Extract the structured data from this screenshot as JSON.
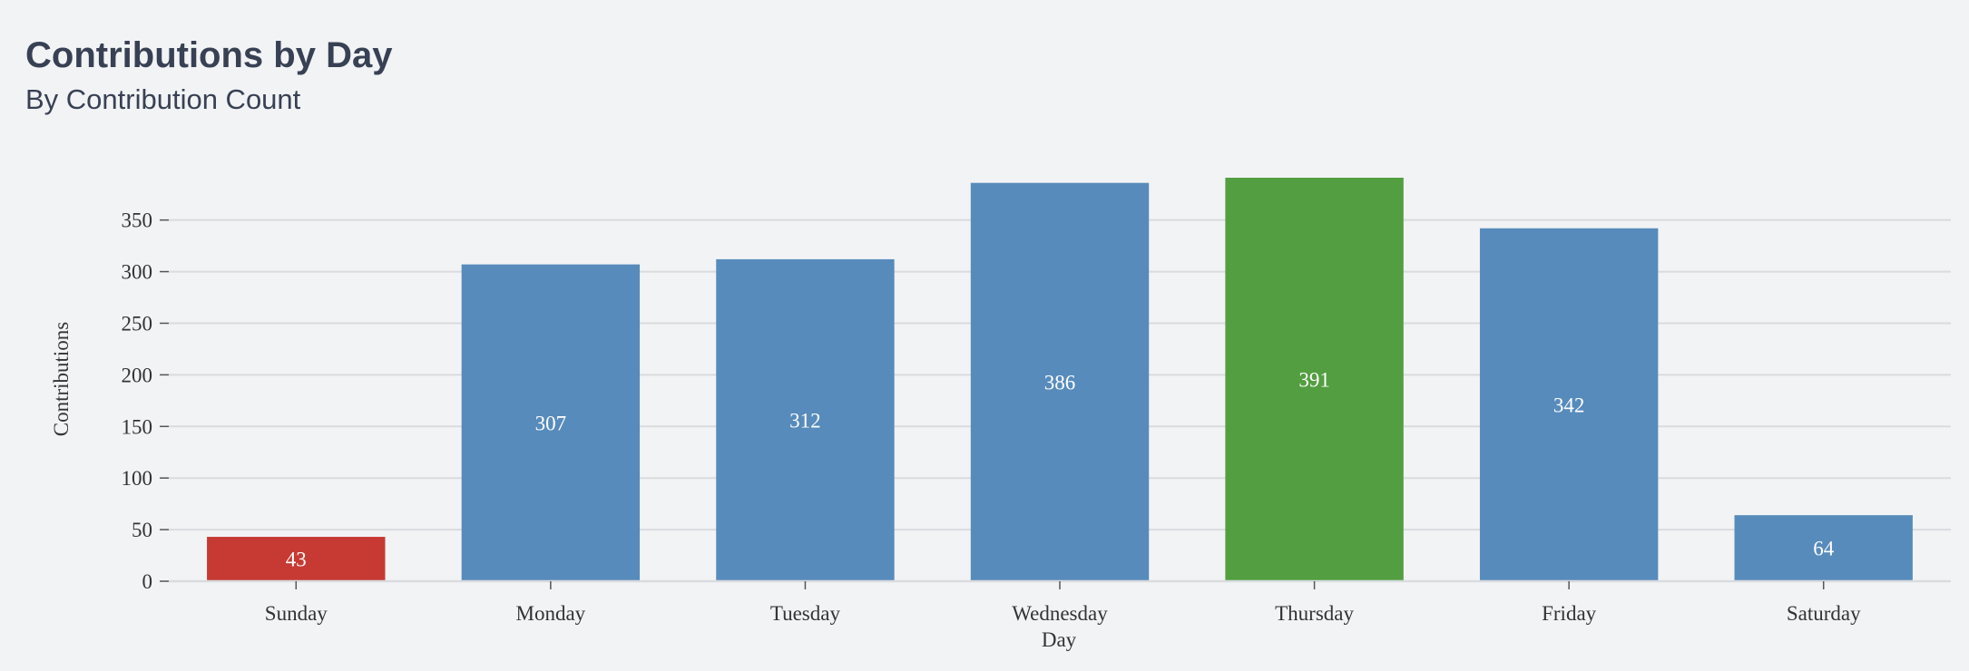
{
  "header": {
    "title": "Contributions by Day",
    "subtitle": "By Contribution Count"
  },
  "colors": {
    "background": "#f2f3f5",
    "default_bar": "#578bbb",
    "lowest_bar": "#c63a33",
    "highest_bar": "#539e41",
    "gridline": "#d9dbdf",
    "text": "#333333",
    "label_text": "#ffffff"
  },
  "chart_data": {
    "type": "bar",
    "title": "Contributions by Day",
    "subtitle": "By Contribution Count",
    "xlabel": "Day",
    "ylabel": "Contributions",
    "categories": [
      "Sunday",
      "Monday",
      "Tuesday",
      "Wednesday",
      "Thursday",
      "Friday",
      "Saturday"
    ],
    "values": [
      43,
      307,
      312,
      386,
      391,
      342,
      64
    ],
    "highlights": {
      "lowest": "Sunday",
      "highest": "Thursday"
    },
    "ylim": [
      0,
      391
    ],
    "yticks": [
      0,
      50,
      100,
      150,
      200,
      250,
      300,
      350
    ],
    "grid": true,
    "legend": "none",
    "data_labels": true
  }
}
